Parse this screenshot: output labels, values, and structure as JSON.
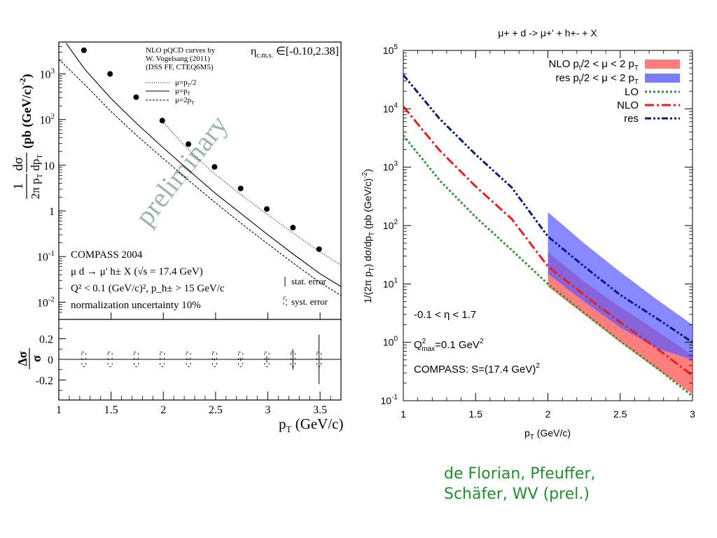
{
  "left_chart": {
    "x_ticks": [
      "1",
      "1.5",
      "2",
      "2.5",
      "3",
      "3.5"
    ],
    "y_ticks": [
      {
        "base": "10",
        "exp": "-2"
      },
      {
        "base": "10",
        "exp": "-1"
      },
      {
        "base": "1",
        "exp": ""
      },
      {
        "base": "10",
        "exp": ""
      },
      {
        "base": "10",
        "exp": "2"
      },
      {
        "base": "10",
        "exp": "3"
      }
    ],
    "ratio_ticks": [
      "0.2",
      "0",
      "-0.2"
    ],
    "xlabel_main": "p",
    "xlabel_sub": "T",
    "xlabel_unit": " (GeV/c)",
    "ylabel_unit": "(pb (GeV/c)",
    "ylabel_exp": "-2",
    "ylabel_close": ")",
    "ratio_label_num": "Δσ",
    "ratio_label_den": "σ",
    "watermark": "preliminary",
    "eta_label": "η",
    "eta_sub": "c.m.s.",
    "eta_range": " ∈[-0.10,2.38]",
    "curve_title": [
      "NLO pQCD curves by",
      "W. Vogelsang (2011)",
      "(DSS FF, CTEQ6M5)"
    ],
    "legend": [
      {
        "style": "dotted",
        "label": "μ=p",
        "sub": "T",
        "suffix": "/2"
      },
      {
        "style": "solid",
        "label": "μ=p",
        "sub": "T",
        "suffix": ""
      },
      {
        "style": "dashed",
        "label": "μ=2p",
        "sub": "T",
        "suffix": ""
      }
    ],
    "info": [
      "COMPASS 2004",
      "μ d → μ' h± X (√s = 17.4 GeV)",
      "Q² < 0.1 (GeV/c)², p_h± > 15 GeV/c",
      "normalization uncertainty 10%"
    ],
    "err_stat": "stat. error",
    "err_syst": "syst. error"
  },
  "right_chart": {
    "title": "μ+ + d -> μ+' + h+- + X",
    "x_ticks": [
      "1",
      "1.5",
      "2",
      "2.5",
      "3"
    ],
    "y_ticks": [
      {
        "base": "10",
        "exp": "-1"
      },
      {
        "base": "10",
        "exp": "0"
      },
      {
        "base": "10",
        "exp": "1"
      },
      {
        "base": "10",
        "exp": "2"
      },
      {
        "base": "10",
        "exp": "3"
      },
      {
        "base": "10",
        "exp": "4"
      },
      {
        "base": "10",
        "exp": "5"
      }
    ],
    "xlabel": "p",
    "xlabel_sub": "T",
    "xlabel_unit": " (GeV/c)",
    "ylabel": "1/(2π p",
    "ylabel_sub": "T",
    "ylabel_mid": ") dσ/dp",
    "ylabel_sub2": "T",
    "ylabel_unit": " (pb (GeV/c)",
    "ylabel_exp": "-2",
    "ylabel_close": ")",
    "legend": [
      {
        "label": "NLO p",
        "sub": "t",
        "mid": "/2 < μ < 2 p",
        "sub2": "T",
        "type": "band",
        "color": "#ff7a7a"
      },
      {
        "label": "res p",
        "sub": "t",
        "mid": "/2 < μ < 2 p",
        "sub2": "T",
        "type": "band",
        "color": "#7b7bff"
      },
      {
        "label": "LO",
        "type": "line",
        "color": "#2a9a2a",
        "dash": "3,3"
      },
      {
        "label": "NLO",
        "type": "line",
        "color": "#e81e1e",
        "dash": "13,4,3,4"
      },
      {
        "label": "res",
        "type": "line",
        "color": "#0a1a7a",
        "dash": "9,3,3,3,3,3"
      }
    ],
    "annot_eta": "-0.1 < η < 1.7",
    "annot_q2": "Q",
    "annot_q2_exp": "2",
    "annot_q2_sub": "max",
    "annot_q2_val": "=0.1 GeV",
    "annot_q2_unit_exp": "2",
    "annot_s": "COMPASS: S=(17.4 GeV)",
    "annot_s_exp": "2"
  },
  "credit": [
    "de Florian, Pfeuffer,",
    "Schäfer, WV (prel.)"
  ],
  "chart_data": [
    {
      "type": "scatter",
      "title": "",
      "xlabel": "p_T (GeV/c)",
      "ylabel": "1/(2π p_T) dσ/dp_T (pb (GeV/c)^-2)",
      "log_y": true,
      "xlim": [
        1,
        3.7
      ],
      "ylim": [
        0.005,
        5000
      ],
      "series": [
        {
          "name": "COMPASS 2004",
          "type": "scatter",
          "x": [
            1.24,
            1.49,
            1.74,
            1.99,
            2.24,
            2.49,
            2.74,
            2.99,
            3.24,
            3.49
          ],
          "y": [
            3300,
            1000,
            310,
            95,
            29,
            9.2,
            3.1,
            1.1,
            0.43,
            0.145
          ]
        },
        {
          "name": "μ=p_T/2",
          "type": "line",
          "x": [
            1.99,
            2.24,
            2.49,
            2.74,
            2.99,
            3.24,
            3.49,
            3.7
          ],
          "y": [
            90,
            22,
            6.5,
            2.3,
            0.85,
            0.33,
            0.13,
            0.065
          ]
        },
        {
          "name": "μ=p_T",
          "type": "line",
          "x": [
            1.07,
            1.25,
            1.5,
            1.75,
            2.0,
            2.25,
            2.5,
            2.75,
            3.0,
            3.25,
            3.5,
            3.7
          ],
          "y": [
            4700,
            1250,
            290,
            80,
            24,
            7.5,
            2.4,
            0.85,
            0.3,
            0.11,
            0.042,
            0.022
          ]
        },
        {
          "name": "μ=2p_T",
          "type": "line",
          "x": [
            1.0,
            1.25,
            1.5,
            1.75,
            2.0,
            2.25,
            2.5,
            2.75,
            3.0,
            3.25,
            3.5,
            3.7
          ],
          "y": [
            2100,
            580,
            150,
            44,
            14,
            4.5,
            1.5,
            0.52,
            0.19,
            0.07,
            0.027,
            0.014
          ]
        }
      ],
      "ratio_panel": {
        "ylabel": "Δσ/σ",
        "ylim": [
          -0.38,
          0.38
        ],
        "x": [
          1.24,
          1.49,
          1.74,
          1.99,
          2.24,
          2.49,
          2.74,
          2.99,
          3.24,
          3.49
        ],
        "stat_error": [
          0.005,
          0.005,
          0.005,
          0.005,
          0.008,
          0.01,
          0.015,
          0.03,
          0.1,
          0.24
        ],
        "syst_error": [
          0.07,
          0.07,
          0.07,
          0.07,
          0.07,
          0.07,
          0.07,
          0.07,
          0.07,
          0.07
        ]
      }
    },
    {
      "type": "line",
      "title": "μ+ + d -> μ+' + h+- + X",
      "xlabel": "p_T (GeV/c)",
      "ylabel": "1/(2π p_T) dσ/dp_T (pb (GeV/c)^-2)",
      "log_y": true,
      "xlim": [
        1,
        3
      ],
      "ylim": [
        0.1,
        100000
      ],
      "series": [
        {
          "name": "LO",
          "type": "line",
          "x": [
            1.0,
            1.25,
            1.5,
            1.75,
            2.0,
            2.25,
            2.5,
            2.75,
            3.0
          ],
          "y": [
            3500,
            600,
            140,
            38,
            10,
            3.2,
            1.05,
            0.37,
            0.12
          ]
        },
        {
          "name": "NLO",
          "type": "line",
          "x": [
            1.0,
            1.25,
            1.5,
            1.75,
            2.0,
            2.25,
            2.5,
            2.75,
            3.0
          ],
          "y": [
            11000,
            1950,
            470,
            130,
            20,
            6.5,
            2.2,
            0.8,
            0.27
          ]
        },
        {
          "name": "res",
          "type": "line",
          "x": [
            1.0,
            1.25,
            1.5,
            1.75,
            2.0,
            2.25,
            2.5,
            2.75,
            3.0
          ],
          "y": [
            38000,
            6800,
            1650,
            450,
            65,
            20,
            6.5,
            2.6,
            1.0
          ]
        },
        {
          "name": "NLO p_t/2 < μ < 2 p_T",
          "type": "band",
          "x": [
            2.0,
            2.25,
            2.5,
            2.75,
            3.0
          ],
          "y_low": [
            9,
            3,
            1,
            0.35,
            0.13
          ],
          "y_high": [
            35,
            11,
            4,
            1.6,
            0.6
          ]
        },
        {
          "name": "res p_t/2 < μ < 2 p_T",
          "type": "band",
          "x": [
            2.0,
            2.25,
            2.5,
            2.75,
            3.0
          ],
          "y_low": [
            15,
            5,
            1.8,
            0.8,
            0.5
          ],
          "y_high": [
            170,
            50,
            16,
            5.5,
            2.0
          ]
        }
      ]
    }
  ]
}
